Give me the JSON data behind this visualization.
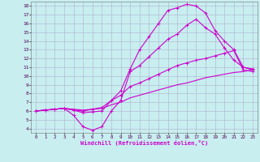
{
  "bg_color": "#c8eef0",
  "grid_color": "#b0b0cc",
  "line_color": "#cc00cc",
  "xlim": [
    -0.5,
    23.5
  ],
  "ylim": [
    3.5,
    18.5
  ],
  "xticks": [
    0,
    1,
    2,
    3,
    4,
    5,
    6,
    7,
    8,
    9,
    10,
    11,
    12,
    13,
    14,
    15,
    16,
    17,
    18,
    19,
    20,
    21,
    22,
    23
  ],
  "yticks": [
    4,
    5,
    6,
    7,
    8,
    9,
    10,
    11,
    12,
    13,
    14,
    15,
    16,
    17,
    18
  ],
  "xlabel": "Windchill (Refroidissement éolien,°C)",
  "line1_x": [
    0,
    1,
    2,
    3,
    4,
    5,
    6,
    7,
    8,
    9,
    10,
    11,
    12,
    13,
    14,
    15,
    16,
    17,
    18,
    19,
    20,
    21,
    22,
    23
  ],
  "line1_y": [
    6.0,
    6.1,
    6.2,
    6.3,
    6.1,
    5.8,
    5.9,
    6.0,
    7.2,
    8.3,
    10.8,
    13.0,
    14.5,
    16.0,
    17.5,
    17.8,
    18.2,
    18.0,
    17.2,
    15.2,
    14.0,
    13.0,
    11.0,
    10.8
  ],
  "line2_x": [
    0,
    1,
    2,
    3,
    4,
    5,
    6,
    7,
    8,
    9,
    10,
    11,
    12,
    13,
    14,
    15,
    16,
    17,
    18,
    19,
    20,
    21,
    22,
    23
  ],
  "line2_y": [
    6.0,
    6.1,
    6.2,
    6.3,
    5.5,
    4.2,
    3.8,
    4.2,
    6.0,
    7.2,
    10.5,
    11.2,
    12.2,
    13.2,
    14.2,
    14.8,
    15.8,
    16.5,
    15.5,
    14.8,
    13.2,
    11.8,
    11.0,
    10.7
  ],
  "line3_x": [
    0,
    1,
    2,
    3,
    4,
    5,
    6,
    7,
    8,
    9,
    10,
    11,
    12,
    13,
    14,
    15,
    16,
    17,
    18,
    19,
    20,
    21,
    22,
    23
  ],
  "line3_y": [
    6.0,
    6.1,
    6.2,
    6.3,
    6.1,
    6.0,
    6.2,
    6.4,
    7.2,
    7.8,
    8.8,
    9.2,
    9.7,
    10.2,
    10.7,
    11.2,
    11.5,
    11.8,
    12.0,
    12.3,
    12.6,
    12.9,
    10.7,
    10.5
  ],
  "line4_x": [
    0,
    1,
    2,
    3,
    4,
    5,
    6,
    7,
    8,
    9,
    10,
    11,
    12,
    13,
    14,
    15,
    16,
    17,
    18,
    19,
    20,
    21,
    22,
    23
  ],
  "line4_y": [
    6.0,
    6.1,
    6.2,
    6.3,
    6.2,
    6.1,
    6.2,
    6.3,
    6.7,
    7.0,
    7.5,
    7.8,
    8.1,
    8.4,
    8.7,
    9.0,
    9.2,
    9.5,
    9.8,
    10.0,
    10.2,
    10.4,
    10.5,
    10.7
  ]
}
